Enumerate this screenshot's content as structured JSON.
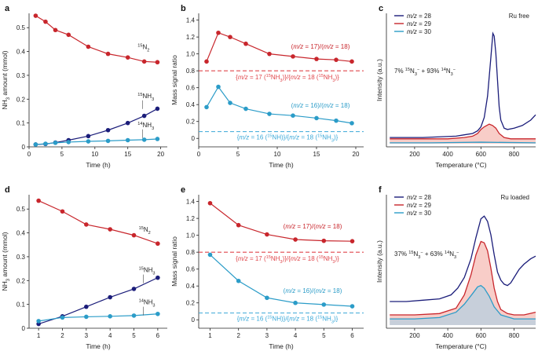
{
  "figure": {
    "panel_labels": [
      "a",
      "b",
      "c",
      "d",
      "e",
      "f"
    ]
  },
  "colors": {
    "red": "#c8262c",
    "navy": "#1b1d7a",
    "cyan": "#2b9cc8",
    "red_dashed": "#e0474c",
    "cyan_dashed": "#3aa8d8",
    "fill_red": "#f2a49b",
    "fill_cyan": "#9fd2ea"
  },
  "chart_data": [
    {
      "id": "a",
      "type": "line",
      "title": "",
      "xlabel": "Time (h)",
      "ylabel": "NH3 amount (mmol)",
      "xlim": [
        0,
        21
      ],
      "ylim": [
        0,
        0.56
      ],
      "xticks": [
        0,
        5,
        10,
        15,
        20
      ],
      "yticks": [
        0,
        0.1,
        0.2,
        0.3,
        0.4,
        0.5
      ],
      "ytick_labels": [
        "0",
        "0.1",
        "0.2",
        "0.3",
        "0.4",
        "0.5"
      ],
      "series": [
        {
          "name": "15N2",
          "color": "red",
          "x": [
            1,
            2.5,
            4,
            6,
            9,
            12,
            15,
            17.5,
            19.5
          ],
          "y": [
            0.55,
            0.525,
            0.49,
            0.47,
            0.42,
            0.39,
            0.375,
            0.358,
            0.355
          ]
        },
        {
          "name": "15NH3",
          "color": "navy",
          "x": [
            1,
            2.5,
            4,
            6,
            9,
            12,
            15,
            17.5,
            19.5
          ],
          "y": [
            0.01,
            0.012,
            0.018,
            0.028,
            0.045,
            0.07,
            0.1,
            0.13,
            0.16
          ]
        },
        {
          "name": "14NH3",
          "color": "cyan",
          "x": [
            1,
            2.5,
            4,
            6,
            9,
            12,
            15,
            17.5,
            19.5
          ],
          "y": [
            0.01,
            0.013,
            0.017,
            0.02,
            0.023,
            0.025,
            0.028,
            0.03,
            0.033
          ]
        }
      ],
      "annotations": [
        {
          "text": "15N2",
          "x": 16.5,
          "y": 0.41
        },
        {
          "text": "15NH3",
          "x": 16.5,
          "y": 0.205
        },
        {
          "text": "14NH3",
          "x": 16.5,
          "y": 0.083
        }
      ]
    },
    {
      "id": "b",
      "type": "line",
      "title": "",
      "xlabel": "Time (h)",
      "ylabel": "Mass signal ratio",
      "xlim": [
        0,
        21
      ],
      "ylim": [
        -0.1,
        1.48
      ],
      "xticks": [
        0,
        5,
        10,
        15,
        20
      ],
      "yticks": [
        0,
        0.2,
        0.4,
        0.6,
        0.8,
        1.0,
        1.2,
        1.4
      ],
      "ytick_labels": [
        "0",
        "0.2",
        "0.4",
        "0.6",
        "0.8",
        "1.0",
        "1.2",
        "1.4"
      ],
      "series": [
        {
          "name": "(m/z = 17)/(m/z = 18)",
          "color": "red",
          "x": [
            1,
            2.5,
            4,
            6,
            9,
            12,
            15,
            17.5,
            19.5
          ],
          "y": [
            0.91,
            1.25,
            1.2,
            1.12,
            1.0,
            0.97,
            0.94,
            0.93,
            0.91
          ]
        },
        {
          "name": "(m/z = 16)/(m/z = 18)",
          "color": "cyan",
          "x": [
            1,
            2.5,
            4,
            6,
            9,
            12,
            15,
            17.5,
            19.5
          ],
          "y": [
            0.37,
            0.61,
            0.42,
            0.35,
            0.29,
            0.27,
            0.24,
            0.21,
            0.18
          ]
        }
      ],
      "reference_lines": [
        {
          "y": 0.8,
          "color": "red_dashed",
          "label": "{m/z = 17 (15NH3)}/{m/z = 18 (15NH3)}"
        },
        {
          "y": 0.08,
          "color": "cyan_dashed",
          "label": "{m/z = 16 (15NH)}/{m/z = 18 (15NH3)}"
        }
      ],
      "series_labels": [
        "(m/z = 17)/(m/z = 18)",
        "(m/z = 16)/(m/z = 18)"
      ]
    },
    {
      "id": "c",
      "type": "line",
      "title": "Ru free",
      "xlabel": "Temperature (°C)",
      "ylabel": "Intensity (a.u.)",
      "xlim": [
        30,
        930
      ],
      "ylim": [
        0,
        1
      ],
      "xticks": [
        200,
        400,
        600,
        800
      ],
      "legend": [
        "m/z = 28",
        "m/z = 29",
        "m/z = 30"
      ],
      "annotation": "7% 15N3− + 93% 14N3−",
      "series": [
        {
          "name": "m/z = 28",
          "color": "navy",
          "x": [
            50,
            150,
            250,
            350,
            450,
            500,
            550,
            580,
            600,
            620,
            640,
            660,
            672,
            680,
            690,
            700,
            710,
            720,
            740,
            760,
            800,
            850,
            900,
            930
          ],
          "y": [
            0.07,
            0.07,
            0.07,
            0.075,
            0.08,
            0.09,
            0.1,
            0.12,
            0.15,
            0.22,
            0.38,
            0.67,
            0.85,
            0.83,
            0.7,
            0.5,
            0.3,
            0.2,
            0.14,
            0.13,
            0.14,
            0.16,
            0.2,
            0.24
          ]
        },
        {
          "name": "m/z = 29",
          "color": "red",
          "x": [
            50,
            200,
            400,
            500,
            550,
            580,
            600,
            620,
            650,
            670,
            690,
            710,
            740,
            780,
            850,
            930
          ],
          "y": [
            0.06,
            0.06,
            0.06,
            0.07,
            0.08,
            0.1,
            0.13,
            0.15,
            0.17,
            0.16,
            0.14,
            0.1,
            0.07,
            0.06,
            0.06,
            0.06
          ]
        },
        {
          "name": "m/z = 30",
          "color": "cyan",
          "x": [
            50,
            300,
            600,
            930
          ],
          "y": [
            0.03,
            0.03,
            0.035,
            0.03
          ]
        }
      ]
    },
    {
      "id": "d",
      "type": "line",
      "title": "",
      "xlabel": "Time (h)",
      "ylabel": "NH3 amount (mmol)",
      "xlim": [
        0.6,
        6.4
      ],
      "ylim": [
        0,
        0.56
      ],
      "xticks": [
        1,
        2,
        3,
        4,
        5,
        6
      ],
      "yticks": [
        0,
        0.1,
        0.2,
        0.3,
        0.4,
        0.5
      ],
      "ytick_labels": [
        "0",
        "0.1",
        "0.2",
        "0.3",
        "0.4",
        "0.5"
      ],
      "series": [
        {
          "name": "15N2",
          "color": "red",
          "x": [
            1,
            2,
            3,
            4,
            5,
            6
          ],
          "y": [
            0.535,
            0.49,
            0.435,
            0.415,
            0.39,
            0.355
          ]
        },
        {
          "name": "15NH3",
          "color": "navy",
          "x": [
            1,
            2,
            3,
            4,
            5,
            6
          ],
          "y": [
            0.018,
            0.05,
            0.09,
            0.13,
            0.165,
            0.212
          ]
        },
        {
          "name": "14NH3",
          "color": "cyan",
          "x": [
            1,
            2,
            3,
            4,
            5,
            6
          ],
          "y": [
            0.03,
            0.045,
            0.048,
            0.05,
            0.053,
            0.06
          ]
        }
      ],
      "annotations": [
        {
          "text": "15N2",
          "x": 5.2,
          "y": 0.405
        },
        {
          "text": "15NH3",
          "x": 5.2,
          "y": 0.235
        },
        {
          "text": "14NH3",
          "x": 5.2,
          "y": 0.1
        }
      ]
    },
    {
      "id": "e",
      "type": "line",
      "title": "",
      "xlabel": "Time (h)",
      "ylabel": "Mass signal ratio",
      "xlim": [
        0.6,
        6.4
      ],
      "ylim": [
        -0.1,
        1.48
      ],
      "xticks": [
        1,
        2,
        3,
        4,
        5,
        6
      ],
      "yticks": [
        0,
        0.2,
        0.4,
        0.6,
        0.8,
        1.0,
        1.2,
        1.4
      ],
      "ytick_labels": [
        "0",
        "0.2",
        "0.4",
        "0.6",
        "0.8",
        "1.0",
        "1.2",
        "1.4"
      ],
      "series": [
        {
          "name": "(m/z = 17)/(m/z = 18)",
          "color": "red",
          "x": [
            1,
            2,
            3,
            4,
            5,
            6
          ],
          "y": [
            1.38,
            1.12,
            1.01,
            0.95,
            0.935,
            0.93
          ]
        },
        {
          "name": "(m/z = 16)/(m/z = 18)",
          "color": "cyan",
          "x": [
            1,
            2,
            3,
            4,
            5,
            6
          ],
          "y": [
            0.77,
            0.46,
            0.26,
            0.2,
            0.18,
            0.16
          ]
        }
      ],
      "reference_lines": [
        {
          "y": 0.8,
          "color": "red_dashed",
          "label": "{m/z = 17 (15NH3)}/{m/z = 18 (15NH3)}"
        },
        {
          "y": 0.08,
          "color": "cyan_dashed",
          "label": "{m/z = 16 (15NH)}/{m/z = 18 (15NH3)}"
        }
      ],
      "series_labels": [
        "(m/z = 17)/(m/z = 18)",
        "(m/z = 16)/(m/z = 18)"
      ]
    },
    {
      "id": "f",
      "type": "line",
      "title": "Ru loaded",
      "xlabel": "Temperature (°C)",
      "ylabel": "Intensity (a.u.)",
      "xlim": [
        30,
        930
      ],
      "ylim": [
        0,
        1
      ],
      "xticks": [
        200,
        400,
        600,
        800
      ],
      "legend": [
        "m/z = 28",
        "m/z = 29",
        "m/z = 30"
      ],
      "annotation": "37% 15N3− + 63% 14N3−",
      "series": [
        {
          "name": "m/z = 28",
          "color": "navy",
          "x": [
            50,
            150,
            250,
            350,
            420,
            460,
            500,
            540,
            570,
            600,
            620,
            640,
            660,
            680,
            700,
            720,
            740,
            760,
            780,
            800,
            830,
            860,
            900,
            930
          ],
          "y": [
            0.2,
            0.2,
            0.21,
            0.22,
            0.25,
            0.3,
            0.38,
            0.52,
            0.68,
            0.82,
            0.84,
            0.8,
            0.7,
            0.55,
            0.42,
            0.36,
            0.33,
            0.32,
            0.34,
            0.38,
            0.44,
            0.48,
            0.52,
            0.54
          ]
        },
        {
          "name": "m/z = 29",
          "color": "red",
          "x": [
            50,
            200,
            350,
            450,
            500,
            540,
            570,
            600,
            620,
            640,
            660,
            680,
            700,
            720,
            760,
            800,
            860,
            930
          ],
          "y": [
            0.1,
            0.1,
            0.11,
            0.15,
            0.25,
            0.4,
            0.55,
            0.65,
            0.64,
            0.58,
            0.45,
            0.3,
            0.2,
            0.14,
            0.11,
            0.1,
            0.1,
            0.12
          ]
        },
        {
          "name": "m/z = 30",
          "color": "cyan",
          "x": [
            50,
            200,
            350,
            450,
            500,
            550,
            580,
            600,
            620,
            650,
            680,
            720,
            800,
            930
          ],
          "y": [
            0.07,
            0.07,
            0.08,
            0.12,
            0.18,
            0.26,
            0.31,
            0.32,
            0.3,
            0.24,
            0.16,
            0.1,
            0.07,
            0.07
          ]
        }
      ]
    }
  ]
}
